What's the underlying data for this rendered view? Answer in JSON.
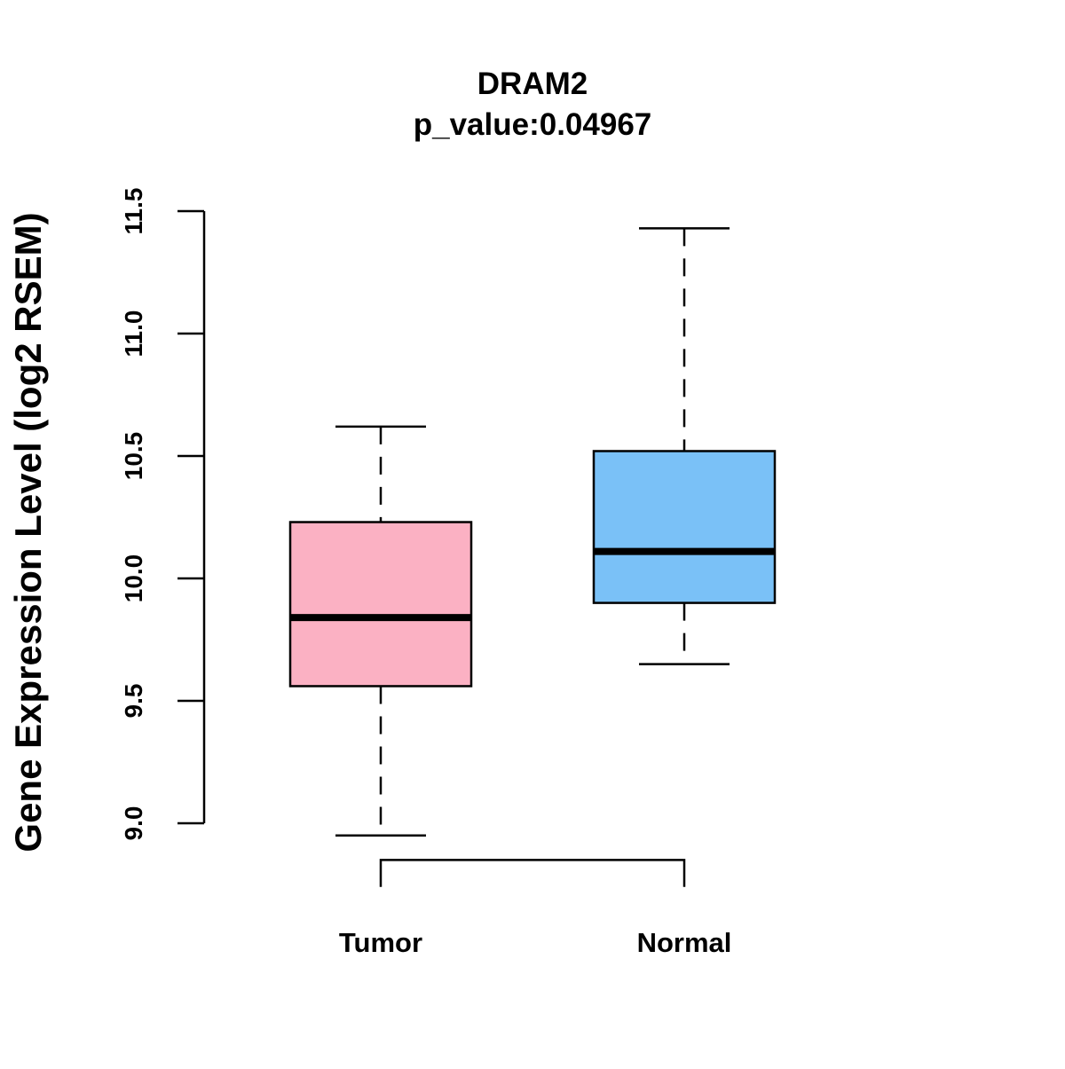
{
  "chart_data": {
    "type": "boxplot",
    "title": "DRAM2",
    "subtitle": "p_value:0.04967",
    "xlabel": "",
    "ylabel": "Gene Expression Level (log2 RSEM)",
    "ylim": [
      8.95,
      11.5
    ],
    "yticks": [
      9.0,
      9.5,
      10.0,
      10.5,
      11.0,
      11.5
    ],
    "ytick_labels": [
      "9.0",
      "9.5",
      "10.0",
      "10.5",
      "11.0",
      "11.5"
    ],
    "categories": [
      "Tumor",
      "Normal"
    ],
    "series": [
      {
        "name": "Tumor",
        "color": "#FBB1C3",
        "whisker_low": 8.95,
        "q1": 9.56,
        "median": 9.84,
        "q3": 10.23,
        "whisker_high": 10.62
      },
      {
        "name": "Normal",
        "color": "#7AC1F7",
        "whisker_low": 9.65,
        "q1": 9.9,
        "median": 10.11,
        "q3": 10.52,
        "whisker_high": 11.43
      }
    ],
    "comparison_bracket": {
      "from": "Tumor",
      "to": "Normal",
      "y": 8.85,
      "drop_to": 8.74
    },
    "grid": false,
    "legend": "none"
  }
}
